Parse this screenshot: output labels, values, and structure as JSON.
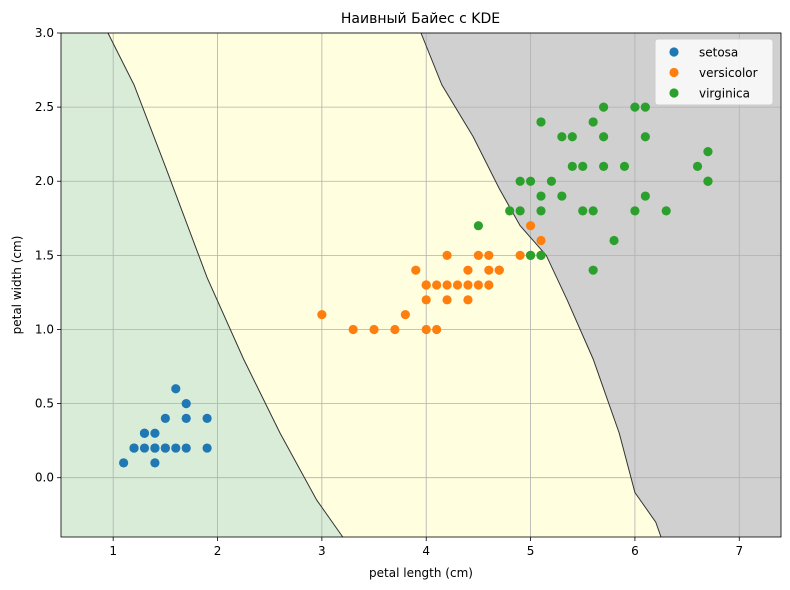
{
  "chart_data": {
    "type": "scatter",
    "title": "Наивный Байес с KDE",
    "xlabel": "petal length (cm)",
    "ylabel": "petal width (cm)",
    "xlim": [
      0.5,
      7.4
    ],
    "ylim": [
      -0.4,
      3.0
    ],
    "xticks": [
      1,
      2,
      3,
      4,
      5,
      6,
      7
    ],
    "xtick_labels": [
      "1",
      "2",
      "3",
      "4",
      "5",
      "6",
      "7"
    ],
    "yticks": [
      0.0,
      0.5,
      1.0,
      1.5,
      2.0,
      2.5,
      3.0
    ],
    "ytick_labels": [
      "0.0",
      "0.5",
      "1.0",
      "1.5",
      "2.0",
      "2.5",
      "3.0"
    ],
    "grid": true,
    "legend_position": "top-right",
    "regions": [
      {
        "name": "setosa",
        "color": "#d8ecd8"
      },
      {
        "name": "versicolor",
        "color": "#ffffdf"
      },
      {
        "name": "virginica",
        "color": "#d0d0d0"
      }
    ],
    "boundaries": [
      {
        "name": "setosa-versicolor",
        "points": [
          [
            0.95,
            3.0
          ],
          [
            1.2,
            2.65
          ],
          [
            1.5,
            2.1
          ],
          [
            1.9,
            1.35
          ],
          [
            2.25,
            0.8
          ],
          [
            2.6,
            0.3
          ],
          [
            2.95,
            -0.15
          ],
          [
            3.2,
            -0.4
          ]
        ]
      },
      {
        "name": "versicolor-virginica",
        "points": [
          [
            3.95,
            3.0
          ],
          [
            4.15,
            2.65
          ],
          [
            4.45,
            2.3
          ],
          [
            4.7,
            1.95
          ],
          [
            4.9,
            1.7
          ],
          [
            5.15,
            1.5
          ],
          [
            5.35,
            1.2
          ],
          [
            5.6,
            0.8
          ],
          [
            5.85,
            0.3
          ],
          [
            6.0,
            -0.1
          ],
          [
            6.2,
            -0.3
          ],
          [
            6.25,
            -0.4
          ]
        ]
      }
    ],
    "series": [
      {
        "name": "setosa",
        "color": "#1f77b4",
        "x": [
          1.1,
          1.2,
          1.2,
          1.3,
          1.3,
          1.3,
          1.4,
          1.4,
          1.4,
          1.4,
          1.5,
          1.5,
          1.5,
          1.6,
          1.6,
          1.7,
          1.7,
          1.7,
          1.9,
          1.9
        ],
        "y": [
          0.1,
          0.2,
          0.2,
          0.2,
          0.3,
          0.3,
          0.1,
          0.2,
          0.2,
          0.3,
          0.2,
          0.2,
          0.4,
          0.2,
          0.6,
          0.2,
          0.4,
          0.5,
          0.2,
          0.4
        ]
      },
      {
        "name": "versicolor",
        "color": "#ff7f0e",
        "x": [
          3.0,
          3.3,
          3.5,
          3.7,
          3.8,
          3.9,
          4.0,
          4.0,
          4.0,
          4.0,
          4.1,
          4.1,
          4.2,
          4.2,
          4.2,
          4.3,
          4.4,
          4.4,
          4.4,
          4.5,
          4.5,
          4.6,
          4.6,
          4.6,
          4.7,
          4.7,
          4.9,
          5.0,
          5.1
        ],
        "y": [
          1.1,
          1.0,
          1.0,
          1.0,
          1.1,
          1.4,
          1.0,
          1.2,
          1.3,
          1.3,
          1.0,
          1.3,
          1.2,
          1.3,
          1.5,
          1.3,
          1.2,
          1.3,
          1.4,
          1.3,
          1.5,
          1.3,
          1.4,
          1.5,
          1.4,
          1.4,
          1.5,
          1.7,
          1.6
        ]
      },
      {
        "name": "virginica",
        "color": "#2ca02c",
        "x": [
          4.5,
          4.8,
          4.9,
          4.9,
          5.0,
          5.0,
          5.1,
          5.1,
          5.1,
          5.1,
          5.1,
          5.2,
          5.3,
          5.3,
          5.4,
          5.4,
          5.5,
          5.5,
          5.6,
          5.6,
          5.6,
          5.7,
          5.7,
          5.7,
          5.8,
          5.9,
          6.0,
          6.0,
          6.1,
          6.1,
          6.1,
          6.3,
          6.6,
          6.7,
          6.7,
          6.7,
          5.0
        ],
        "y": [
          1.7,
          1.8,
          2.0,
          1.8,
          2.0,
          1.5,
          1.5,
          1.8,
          1.9,
          2.4,
          1.5,
          2.0,
          1.9,
          2.3,
          2.1,
          2.3,
          1.8,
          2.1,
          2.4,
          1.8,
          1.4,
          2.5,
          2.1,
          2.3,
          1.6,
          2.1,
          1.8,
          2.5,
          2.5,
          2.3,
          1.9,
          1.8,
          2.1,
          2.2,
          2.0,
          2.0,
          1.5
        ]
      }
    ]
  }
}
